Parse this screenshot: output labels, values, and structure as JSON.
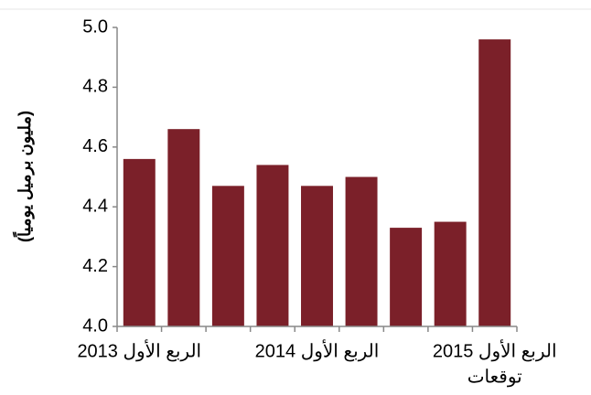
{
  "chart_data": {
    "type": "bar",
    "y_label": "(مليون برميل يومياً)",
    "categories": [
      "الربع الأول 2013",
      null,
      null,
      null,
      "الربع الأول 2014",
      null,
      null,
      null,
      "الربع الأول 2015"
    ],
    "annotation": "توقعات",
    "values": [
      4.56,
      4.66,
      4.47,
      4.54,
      4.47,
      4.5,
      4.33,
      4.35,
      4.96
    ],
    "color": "#7b2029",
    "ylim": [
      4.0,
      5.0
    ],
    "yticks": [
      {
        "value": 4,
        "label": "4.0"
      },
      4.2,
      4.4,
      4.6,
      4.8,
      {
        "value": 5,
        "label": "5.0"
      }
    ],
    "grid": false
  }
}
